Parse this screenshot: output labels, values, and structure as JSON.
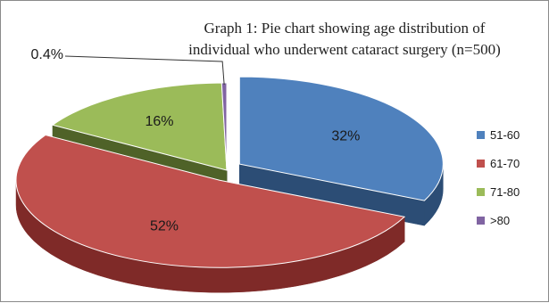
{
  "chart_data": {
    "type": "pie",
    "title_line1": "Graph 1: Pie chart showing age distribution of",
    "title_line2": "individual who underwent cataract surgery (n=500)",
    "slices": [
      {
        "name": "51-60",
        "value": 32,
        "label": "32%",
        "color": "#4f81bd",
        "side": "#2c4d75",
        "exploded": true
      },
      {
        "name": "61-70",
        "value": 52,
        "label": "52%",
        "color": "#c0504d",
        "side": "#7f2a28",
        "exploded": true
      },
      {
        "name": "71-80",
        "value": 16,
        "label": "16%",
        "color": "#9bbb59",
        "side": "#4f6228",
        "exploded": false
      },
      {
        "name": ">80",
        "value": 0.4,
        "label": "0.4%",
        "color": "#8064a2",
        "side": "#3f3151",
        "exploded": false
      }
    ],
    "legend_position": "right",
    "style": "3d-exploded"
  }
}
